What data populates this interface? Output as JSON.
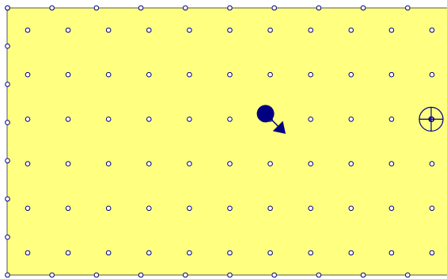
{
  "board": {
    "columns": 11,
    "rows": 6,
    "background_color": "#ffff80",
    "line_color": "#000080",
    "border_color": "#555555",
    "dot_fill": "#ffffff"
  },
  "player": {
    "column": 6,
    "row": 2,
    "facing": "down-right",
    "color": "#000080"
  },
  "target": {
    "column": 10,
    "row": 2,
    "icon": "crosshair-icon",
    "color": "#000080"
  }
}
